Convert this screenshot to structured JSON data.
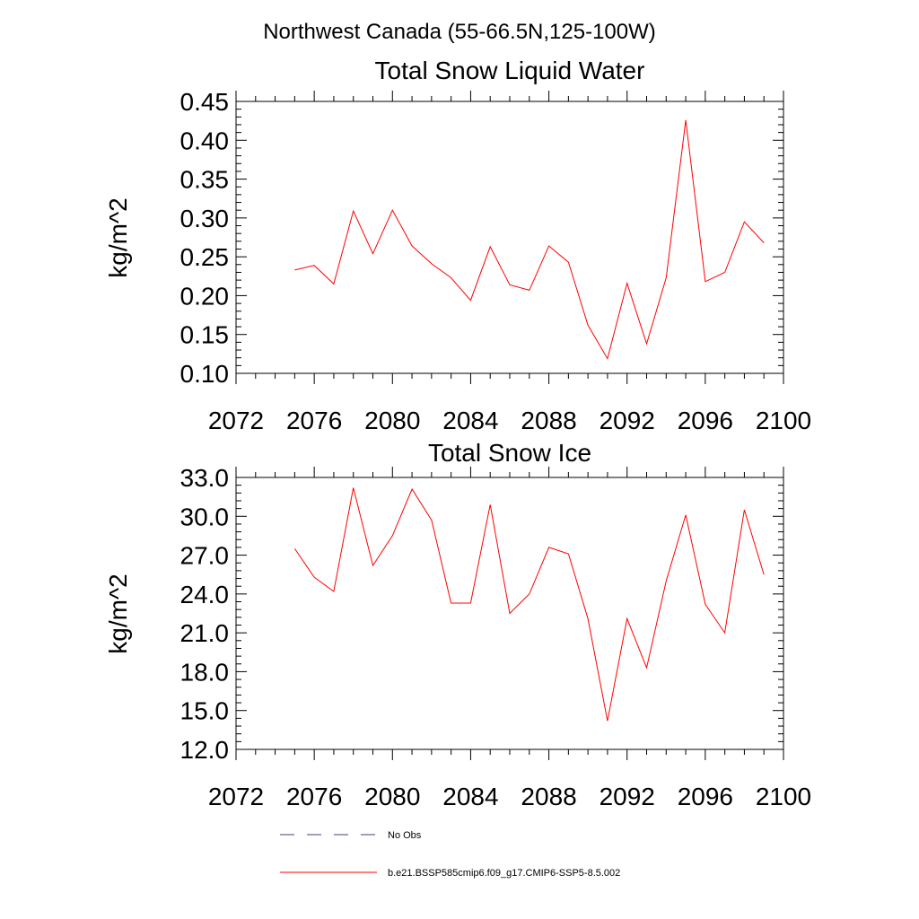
{
  "figure": {
    "title": "Northwest Canada (55-66.5N,125-100W)"
  },
  "chart_data": [
    {
      "type": "line",
      "title": "Total Snow Liquid Water",
      "xlabel": "",
      "ylabel": "kg/m^2",
      "xlim": [
        2072,
        2100
      ],
      "ylim": [
        0.1,
        0.45
      ],
      "xticks": [
        "2072",
        "2076",
        "2080",
        "2084",
        "2088",
        "2092",
        "2096",
        "2100"
      ],
      "yticks": [
        "0.10",
        "0.15",
        "0.20",
        "0.25",
        "0.30",
        "0.35",
        "0.40",
        "0.45"
      ],
      "grid": false,
      "series": [
        {
          "name": "b.e21.BSSP585cmip6.f09_g17.CMIP6-SSP5-8.5.002",
          "color": "#ff0000",
          "x": [
            2075,
            2076,
            2077,
            2078,
            2079,
            2080,
            2081,
            2082,
            2083,
            2084,
            2085,
            2086,
            2087,
            2088,
            2089,
            2090,
            2091,
            2092,
            2093,
            2094,
            2095,
            2096,
            2097,
            2098,
            2099
          ],
          "values": [
            0.233,
            0.239,
            0.215,
            0.309,
            0.254,
            0.31,
            0.264,
            0.241,
            0.223,
            0.194,
            0.263,
            0.214,
            0.207,
            0.264,
            0.243,
            0.162,
            0.119,
            0.216,
            0.138,
            0.223,
            0.426,
            0.218,
            0.23,
            0.295,
            0.268
          ]
        }
      ]
    },
    {
      "type": "line",
      "title": "Total Snow Ice",
      "xlabel": "",
      "ylabel": "kg/m^2",
      "xlim": [
        2072,
        2100
      ],
      "ylim": [
        12.0,
        33.0
      ],
      "xticks": [
        "2072",
        "2076",
        "2080",
        "2084",
        "2088",
        "2092",
        "2096",
        "2100"
      ],
      "yticks": [
        "12.0",
        "15.0",
        "18.0",
        "21.0",
        "24.0",
        "27.0",
        "30.0",
        "33.0"
      ],
      "grid": false,
      "series": [
        {
          "name": "b.e21.BSSP585cmip6.f09_g17.CMIP6-SSP5-8.5.002",
          "color": "#ff0000",
          "x": [
            2075,
            2076,
            2077,
            2078,
            2079,
            2080,
            2081,
            2082,
            2083,
            2084,
            2085,
            2086,
            2087,
            2088,
            2089,
            2090,
            2091,
            2092,
            2093,
            2094,
            2095,
            2096,
            2097,
            2098,
            2099
          ],
          "values": [
            27.5,
            25.3,
            24.2,
            32.2,
            26.2,
            28.5,
            32.1,
            29.7,
            23.3,
            23.3,
            30.9,
            22.5,
            24.0,
            27.6,
            27.1,
            22.1,
            14.2,
            22.1,
            18.3,
            25.0,
            30.1,
            23.2,
            21.0,
            30.5,
            25.5
          ]
        }
      ]
    }
  ],
  "legend": {
    "placement": "bottom",
    "items": [
      {
        "label": "No Obs",
        "color": "#3b3f8f",
        "style": "dashed"
      },
      {
        "label": "b.e21.BSSP585cmip6.f09_g17.CMIP6-SSP5-8.5.002",
        "color": "#ff0000",
        "style": "solid"
      }
    ]
  }
}
